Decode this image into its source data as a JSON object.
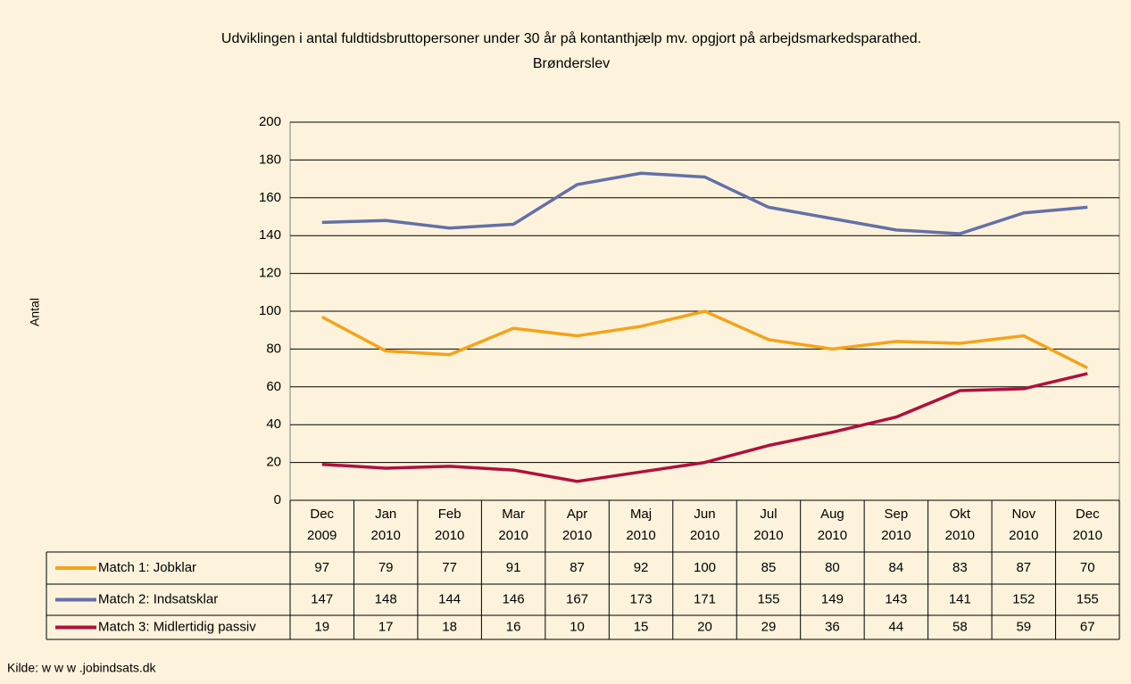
{
  "chart_data": {
    "type": "line",
    "title": "Udviklingen i antal fuldtidsbruttopersoner under 30 år på kontanthjælp mv. opgjort på arbejdsmarkedsparathed. Brønderslev",
    "y_label": "Antal",
    "source": "Kilde: w w w .jobindsats.dk",
    "categories": [
      "Dec 2009",
      "Jan 2010",
      "Feb 2010",
      "Mar 2010",
      "Apr 2010",
      "Maj 2010",
      "Jun 2010",
      "Jul 2010",
      "Aug 2010",
      "Sep 2010",
      "Okt 2010",
      "Nov 2010",
      "Dec 2010"
    ],
    "series": [
      {
        "name": "Match 1: Jobklar",
        "color": "#f5a31a",
        "values": [
          97,
          79,
          77,
          91,
          87,
          92,
          100,
          85,
          80,
          84,
          83,
          87,
          70
        ]
      },
      {
        "name": "Match 2: Indsatsklar",
        "color": "#6470a8",
        "values": [
          147,
          148,
          144,
          146,
          167,
          173,
          171,
          155,
          149,
          143,
          141,
          152,
          155
        ]
      },
      {
        "name": "Match 3: Midlertidig passiv",
        "color": "#b0103c",
        "values": [
          19,
          17,
          18,
          16,
          10,
          15,
          20,
          29,
          36,
          44,
          58,
          59,
          67
        ]
      }
    ],
    "ylim": [
      0,
      200
    ],
    "yticks": [
      0,
      20,
      40,
      60,
      80,
      100,
      120,
      140,
      160,
      180,
      200
    ],
    "grid": true,
    "data_table": true
  }
}
